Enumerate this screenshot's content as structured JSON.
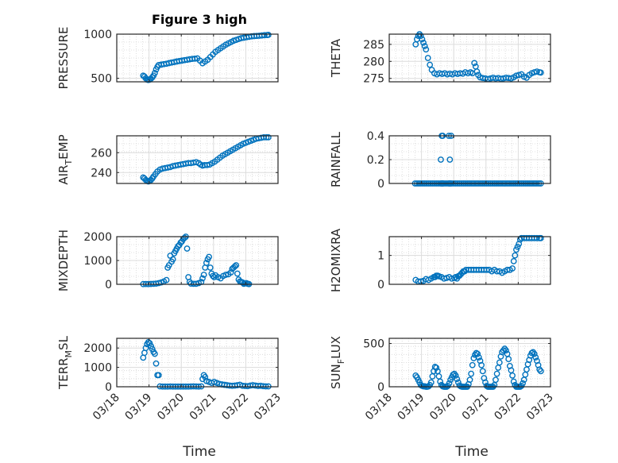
{
  "figure": {
    "title": "Figure 3 high",
    "marker_color": "#0072BD",
    "x_tick_labels": [
      "03/18",
      "03/19",
      "03/20",
      "03/21",
      "03/22",
      "03/23"
    ],
    "xlabel": "Time"
  },
  "chart_data": [
    {
      "type": "scatter",
      "ylabel": "PRESSURE",
      "x": [
        18.82,
        18.86,
        18.9,
        18.94,
        18.98,
        19.02,
        19.06,
        19.1,
        19.14,
        19.18,
        19.22,
        19.26,
        19.3,
        19.38,
        19.46,
        19.54,
        19.62,
        19.7,
        19.78,
        19.86,
        19.94,
        20.02,
        20.1,
        20.18,
        20.26,
        20.34,
        20.42,
        20.5,
        20.58,
        20.66,
        20.74,
        20.82,
        20.9,
        20.98,
        21.06,
        21.14,
        21.22,
        21.3,
        21.38,
        21.46,
        21.54,
        21.62,
        21.7,
        21.78,
        21.86,
        21.94,
        22.02,
        22.1,
        22.18,
        22.26,
        22.34,
        22.42,
        22.5,
        22.58,
        22.66,
        22.7
      ],
      "y": [
        530,
        520,
        500,
        485,
        480,
        485,
        495,
        510,
        530,
        560,
        600,
        630,
        650,
        655,
        660,
        665,
        672,
        678,
        684,
        690,
        695,
        700,
        705,
        710,
        715,
        720,
        722,
        725,
        700,
        670,
        690,
        710,
        740,
        770,
        800,
        820,
        840,
        860,
        880,
        895,
        910,
        925,
        935,
        945,
        955,
        960,
        965,
        970,
        975,
        978,
        980,
        982,
        985,
        988,
        990,
        992
      ],
      "yticks": [
        "500",
        "1000"
      ],
      "ylim": [
        460,
        1000
      ],
      "xlim": [
        18,
        23
      ],
      "grid": true
    },
    {
      "type": "scatter",
      "ylabel": "THETA",
      "x": [
        18.82,
        18.86,
        18.9,
        18.94,
        18.98,
        19.02,
        19.06,
        19.1,
        19.14,
        19.2,
        19.26,
        19.32,
        19.4,
        19.48,
        19.56,
        19.64,
        19.72,
        19.8,
        19.88,
        19.96,
        20.04,
        20.12,
        20.2,
        20.28,
        20.36,
        20.44,
        20.52,
        20.58,
        20.64,
        20.68,
        20.72,
        20.76,
        20.82,
        20.9,
        20.98,
        21.06,
        21.14,
        21.22,
        21.3,
        21.38,
        21.46,
        21.54,
        21.62,
        21.7,
        21.78,
        21.86,
        21.94,
        22.02,
        22.1,
        22.18,
        22.26,
        22.34,
        22.42,
        22.5,
        22.58,
        22.66,
        22.7
      ],
      "y": [
        285,
        286.5,
        287.5,
        288,
        287.5,
        286.5,
        285.5,
        284.5,
        283.5,
        281,
        279,
        277.5,
        276.5,
        276.2,
        276.5,
        276.3,
        276.5,
        276.2,
        276.4,
        276.2,
        276.5,
        276.3,
        276.5,
        276.4,
        276.8,
        276.5,
        276.8,
        276.5,
        279.5,
        278.5,
        277,
        276,
        275.3,
        275.1,
        275,
        274.8,
        275,
        275.2,
        275,
        275.1,
        274.9,
        275,
        275.2,
        275.1,
        275,
        275.3,
        275.8,
        276,
        276.2,
        275.5,
        275.2,
        276,
        276.5,
        276.8,
        277,
        276.8,
        276.7
      ],
      "yticks": [
        "275",
        "280",
        "285"
      ],
      "ylim": [
        274,
        288
      ],
      "xlim": [
        18,
        23
      ],
      "grid": true
    },
    {
      "type": "scatter",
      "ylabel": "AIR_TEMP",
      "x": [
        18.82,
        18.86,
        18.9,
        18.94,
        18.98,
        19.02,
        19.06,
        19.1,
        19.14,
        19.2,
        19.26,
        19.34,
        19.42,
        19.5,
        19.58,
        19.66,
        19.74,
        19.82,
        19.9,
        19.98,
        20.06,
        20.14,
        20.22,
        20.3,
        20.38,
        20.46,
        20.54,
        20.6,
        20.66,
        20.72,
        20.8,
        20.88,
        20.96,
        21.04,
        21.12,
        21.2,
        21.28,
        21.36,
        21.44,
        21.52,
        21.6,
        21.68,
        21.76,
        21.84,
        21.92,
        22,
        22.08,
        22.16,
        22.24,
        22.32,
        22.4,
        22.48,
        22.56,
        22.64,
        22.7
      ],
      "y": [
        235,
        234,
        232.5,
        231.5,
        231,
        231.5,
        232.5,
        234,
        236,
        238.5,
        241,
        243,
        244,
        244.5,
        245,
        245.5,
        246.5,
        247,
        247.5,
        248,
        248.5,
        249,
        249.5,
        249.5,
        250,
        250.5,
        249.5,
        248,
        247,
        247.5,
        247.5,
        248,
        249.5,
        251,
        253,
        255,
        257,
        258.5,
        260,
        261.5,
        263,
        264.5,
        266,
        267.5,
        269,
        270,
        271,
        272,
        273,
        274,
        274.5,
        275,
        275.5,
        275.5,
        275.5
      ],
      "yticks": [
        "240",
        "260"
      ],
      "ylim": [
        229,
        277
      ],
      "xlim": [
        18,
        23
      ],
      "grid": true
    },
    {
      "type": "scatter",
      "ylabel": "RAINFALL",
      "x": [
        18.8,
        18.86,
        18.92,
        18.98,
        19.04,
        19.1,
        19.16,
        19.22,
        19.28,
        19.34,
        19.4,
        19.46,
        19.52,
        19.58,
        19.62,
        19.64,
        19.66,
        19.7,
        19.76,
        19.82,
        19.86,
        19.88,
        19.9,
        19.94,
        20,
        20.06,
        20.12,
        20.18,
        20.24,
        20.3,
        20.36,
        20.42,
        20.48,
        20.54,
        20.6,
        20.66,
        20.72,
        20.78,
        20.84,
        20.9,
        20.96,
        21.02,
        21.08,
        21.14,
        21.2,
        21.26,
        21.32,
        21.38,
        21.44,
        21.5,
        21.56,
        21.62,
        21.68,
        21.74,
        21.8,
        21.86,
        21.92,
        21.98,
        22.04,
        22.1,
        22.16,
        22.22,
        22.28,
        22.34,
        22.4,
        22.46,
        22.52,
        22.58,
        22.64,
        22.7,
        19.6,
        19.63,
        19.66,
        19.85,
        19.88,
        19.92
      ],
      "y": [
        0,
        0,
        0,
        0,
        0,
        0,
        0,
        0,
        0,
        0,
        0,
        0,
        0,
        0,
        0,
        0,
        0,
        0,
        0,
        0,
        0,
        0,
        0,
        0,
        0,
        0,
        0,
        0,
        0,
        0,
        0,
        0,
        0,
        0,
        0,
        0,
        0,
        0,
        0,
        0,
        0,
        0,
        0,
        0,
        0,
        0,
        0,
        0,
        0,
        0,
        0,
        0,
        0,
        0,
        0,
        0,
        0,
        0,
        0,
        0,
        0,
        0,
        0,
        0,
        0,
        0,
        0,
        0,
        0,
        0,
        0.2,
        0.4,
        0.4,
        0.4,
        0.2,
        0.4
      ],
      "yticks": [
        "0",
        "0.2",
        "0.4"
      ],
      "ylim": [
        0,
        0.4
      ],
      "xlim": [
        18,
        23
      ],
      "grid": true
    },
    {
      "type": "scatter",
      "ylabel": "MIXDEPTH",
      "x": [
        18.82,
        18.9,
        18.98,
        19.06,
        19.14,
        19.22,
        19.3,
        19.38,
        19.46,
        19.54,
        19.58,
        19.62,
        19.66,
        19.7,
        19.74,
        19.78,
        19.82,
        19.86,
        19.9,
        19.94,
        19.98,
        20.02,
        20.06,
        20.1,
        20.14,
        20.18,
        20.22,
        20.26,
        20.3,
        20.38,
        20.46,
        20.54,
        20.62,
        20.66,
        20.7,
        20.74,
        20.78,
        20.82,
        20.86,
        20.9,
        20.94,
        20.98,
        21.02,
        21.06,
        21.14,
        21.22,
        21.3,
        21.38,
        21.46,
        21.54,
        21.58,
        21.62,
        21.66,
        21.7,
        21.74,
        21.78,
        21.82,
        21.86,
        21.9,
        21.94,
        21.98,
        22.02,
        22.06,
        22.1
      ],
      "y": [
        10,
        12,
        10,
        15,
        20,
        30,
        50,
        80,
        120,
        180,
        700,
        800,
        1200,
        950,
        1050,
        1300,
        1400,
        1500,
        1600,
        1650,
        1750,
        1800,
        1900,
        1950,
        2000,
        1500,
        300,
        100,
        30,
        20,
        20,
        50,
        100,
        250,
        400,
        700,
        900,
        1050,
        1150,
        700,
        450,
        350,
        300,
        380,
        300,
        250,
        350,
        400,
        420,
        500,
        650,
        700,
        750,
        800,
        450,
        200,
        120,
        100,
        80,
        20,
        40,
        50,
        20,
        10
      ],
      "yticks": [
        "0",
        "1000",
        "2000"
      ],
      "ylim": [
        0,
        2000
      ],
      "xlim": [
        18,
        23
      ],
      "grid": true
    },
    {
      "type": "scatter",
      "ylabel": "H2OMIXRA",
      "x": [
        18.82,
        18.9,
        18.98,
        19.06,
        19.14,
        19.22,
        19.3,
        19.38,
        19.42,
        19.46,
        19.5,
        19.54,
        19.62,
        19.7,
        19.78,
        19.86,
        19.94,
        20.02,
        20.06,
        20.1,
        20.14,
        20.18,
        20.22,
        20.26,
        20.3,
        20.34,
        20.38,
        20.46,
        20.54,
        20.62,
        20.7,
        20.78,
        20.86,
        20.94,
        21.02,
        21.1,
        21.18,
        21.26,
        21.34,
        21.42,
        21.5,
        21.58,
        21.66,
        21.74,
        21.82,
        21.86,
        21.9,
        21.94,
        21.98,
        22.02,
        22.06,
        22.1,
        22.18,
        22.26,
        22.34,
        22.42,
        22.5,
        22.58,
        22.66,
        22.7
      ],
      "y": [
        0.15,
        0.1,
        0.1,
        0.12,
        0.18,
        0.15,
        0.2,
        0.25,
        0.25,
        0.3,
        0.3,
        0.28,
        0.25,
        0.2,
        0.22,
        0.25,
        0.2,
        0.22,
        0.25,
        0.2,
        0.28,
        0.3,
        0.35,
        0.4,
        0.45,
        0.45,
        0.5,
        0.5,
        0.5,
        0.5,
        0.5,
        0.5,
        0.5,
        0.5,
        0.5,
        0.5,
        0.45,
        0.5,
        0.45,
        0.45,
        0.4,
        0.45,
        0.5,
        0.5,
        0.55,
        0.8,
        1.0,
        1.2,
        1.3,
        1.4,
        1.55,
        1.6,
        1.6,
        1.6,
        1.6,
        1.6,
        1.6,
        1.6,
        1.6,
        1.6
      ],
      "yticks": [
        "0",
        "1"
      ],
      "ylim": [
        0,
        1.65
      ],
      "xlim": [
        18,
        23
      ],
      "grid": true
    },
    {
      "type": "scatter",
      "ylabel": "TERR_MSL",
      "x": [
        18.82,
        18.86,
        18.9,
        18.94,
        18.98,
        19.02,
        19.06,
        19.1,
        19.14,
        19.18,
        19.22,
        19.26,
        19.3,
        19.34,
        19.42,
        19.5,
        19.58,
        19.66,
        19.74,
        19.82,
        19.9,
        19.98,
        20.06,
        20.14,
        20.22,
        20.3,
        20.38,
        20.46,
        20.54,
        20.62,
        20.66,
        20.7,
        20.74,
        20.78,
        20.86,
        20.94,
        21.02,
        21.1,
        21.18,
        21.26,
        21.34,
        21.42,
        21.5,
        21.58,
        21.66,
        21.74,
        21.82,
        21.9,
        21.98,
        22.06,
        22.14,
        22.22,
        22.3,
        22.38,
        22.46,
        22.54,
        22.62,
        22.7
      ],
      "y": [
        1500,
        1750,
        2000,
        2200,
        2300,
        2250,
        2100,
        1950,
        1800,
        1700,
        1200,
        600,
        600,
        20,
        10,
        10,
        10,
        15,
        10,
        10,
        10,
        10,
        10,
        10,
        10,
        15,
        20,
        15,
        10,
        20,
        400,
        600,
        500,
        300,
        250,
        200,
        250,
        200,
        150,
        120,
        100,
        80,
        60,
        50,
        60,
        80,
        100,
        50,
        40,
        30,
        60,
        80,
        60,
        40,
        50,
        30,
        20,
        20
      ],
      "yticks": [
        "0",
        "1000",
        "2000"
      ],
      "ylim": [
        0,
        2500
      ],
      "xlim": [
        18,
        23
      ],
      "grid": true
    },
    {
      "type": "scatter",
      "ylabel": "SUN_FLUX",
      "x": [
        18.82,
        18.86,
        18.9,
        18.94,
        18.98,
        19.02,
        19.06,
        19.1,
        19.14,
        19.18,
        19.22,
        19.26,
        19.3,
        19.34,
        19.38,
        19.42,
        19.46,
        19.5,
        19.54,
        19.58,
        19.62,
        19.66,
        19.7,
        19.74,
        19.78,
        19.82,
        19.86,
        19.9,
        19.94,
        19.98,
        20.02,
        20.06,
        20.1,
        20.14,
        20.18,
        20.22,
        20.26,
        20.3,
        20.34,
        20.38,
        20.42,
        20.46,
        20.5,
        20.54,
        20.58,
        20.62,
        20.66,
        20.7,
        20.74,
        20.78,
        20.82,
        20.86,
        20.9,
        20.94,
        20.98,
        21.02,
        21.06,
        21.1,
        21.14,
        21.18,
        21.22,
        21.26,
        21.3,
        21.34,
        21.38,
        21.42,
        21.46,
        21.5,
        21.54,
        21.58,
        21.62,
        21.66,
        21.7,
        21.74,
        21.78,
        21.82,
        21.86,
        21.9,
        21.94,
        21.98,
        22.02,
        22.06,
        22.1,
        22.14,
        22.18,
        22.22,
        22.26,
        22.3,
        22.34,
        22.38,
        22.42,
        22.46,
        22.5,
        22.54,
        22.58,
        22.62,
        22.66,
        22.7
      ],
      "y": [
        130,
        110,
        80,
        50,
        20,
        10,
        5,
        5,
        0,
        0,
        5,
        20,
        50,
        120,
        180,
        230,
        220,
        180,
        120,
        60,
        20,
        5,
        0,
        0,
        0,
        10,
        40,
        80,
        110,
        140,
        150,
        130,
        90,
        50,
        15,
        5,
        0,
        0,
        0,
        0,
        0,
        30,
        80,
        150,
        250,
        330,
        370,
        390,
        380,
        340,
        300,
        250,
        180,
        100,
        50,
        10,
        0,
        0,
        0,
        0,
        0,
        20,
        80,
        150,
        220,
        280,
        350,
        400,
        420,
        440,
        420,
        380,
        320,
        240,
        190,
        130,
        60,
        20,
        0,
        0,
        0,
        0,
        10,
        40,
        80,
        140,
        200,
        260,
        310,
        360,
        390,
        400,
        380,
        340,
        300,
        250,
        200,
        180
      ],
      "yticks": [
        "0",
        "500"
      ],
      "ylim": [
        0,
        560
      ],
      "xlim": [
        18,
        23
      ],
      "grid": true
    }
  ]
}
